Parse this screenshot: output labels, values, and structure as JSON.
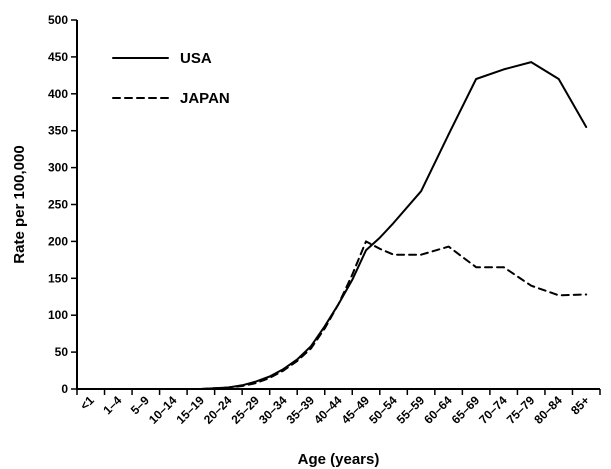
{
  "chart_data": {
    "type": "line",
    "categories": [
      "<1",
      "1–4",
      "5–9",
      "10–14",
      "15–19",
      "20–24",
      "25–29",
      "30–34",
      "35–39",
      "40–44",
      "45–49",
      "50–54",
      "55–59",
      "60–64",
      "65–69",
      "70–74",
      "75–79",
      "80–84",
      "85+"
    ],
    "xlabel": "Age (years)",
    "ylabel": "Rate per 100,000",
    "ylim": [
      0,
      500
    ],
    "yticks": [
      0,
      50,
      100,
      150,
      200,
      250,
      300,
      350,
      400,
      450,
      500
    ],
    "grid": false,
    "legend_position": "top-left",
    "series": [
      {
        "name": "USA",
        "style": "solid",
        "points": [
          {
            "x": 4.5,
            "y": 0
          },
          {
            "x": 5,
            "y": 1
          },
          {
            "x": 5.5,
            "y": 2
          },
          {
            "x": 6,
            "y": 5
          },
          {
            "x": 6.5,
            "y": 10
          },
          {
            "x": 7,
            "y": 17
          },
          {
            "x": 7.5,
            "y": 27
          },
          {
            "x": 8,
            "y": 40
          },
          {
            "x": 8.5,
            "y": 58
          },
          {
            "x": 9,
            "y": 85
          },
          {
            "x": 9.5,
            "y": 115
          },
          {
            "x": 10,
            "y": 148
          },
          {
            "x": 10.5,
            "y": 188
          },
          {
            "x": 11,
            "y": 205
          },
          {
            "x": 11.5,
            "y": 225
          },
          {
            "x": 12.5,
            "y": 268
          },
          {
            "x": 13.5,
            "y": 345
          },
          {
            "x": 14.5,
            "y": 420
          },
          {
            "x": 15.5,
            "y": 433
          },
          {
            "x": 16.5,
            "y": 443
          },
          {
            "x": 17.5,
            "y": 420
          },
          {
            "x": 18.5,
            "y": 355
          }
        ]
      },
      {
        "name": "JAPAN",
        "style": "dashed",
        "points": [
          {
            "x": 4.5,
            "y": 0
          },
          {
            "x": 5,
            "y": 1
          },
          {
            "x": 5.5,
            "y": 2
          },
          {
            "x": 6,
            "y": 4
          },
          {
            "x": 6.5,
            "y": 8
          },
          {
            "x": 7,
            "y": 15
          },
          {
            "x": 7.5,
            "y": 25
          },
          {
            "x": 8,
            "y": 38
          },
          {
            "x": 8.5,
            "y": 55
          },
          {
            "x": 9,
            "y": 82
          },
          {
            "x": 9.5,
            "y": 115
          },
          {
            "x": 10,
            "y": 155
          },
          {
            "x": 10.5,
            "y": 200
          },
          {
            "x": 11,
            "y": 190
          },
          {
            "x": 11.5,
            "y": 182
          },
          {
            "x": 12.5,
            "y": 182
          },
          {
            "x": 13.5,
            "y": 193
          },
          {
            "x": 14.5,
            "y": 165
          },
          {
            "x": 15.5,
            "y": 165
          },
          {
            "x": 16.5,
            "y": 140
          },
          {
            "x": 17.5,
            "y": 127
          },
          {
            "x": 18.5,
            "y": 128
          }
        ]
      }
    ]
  }
}
